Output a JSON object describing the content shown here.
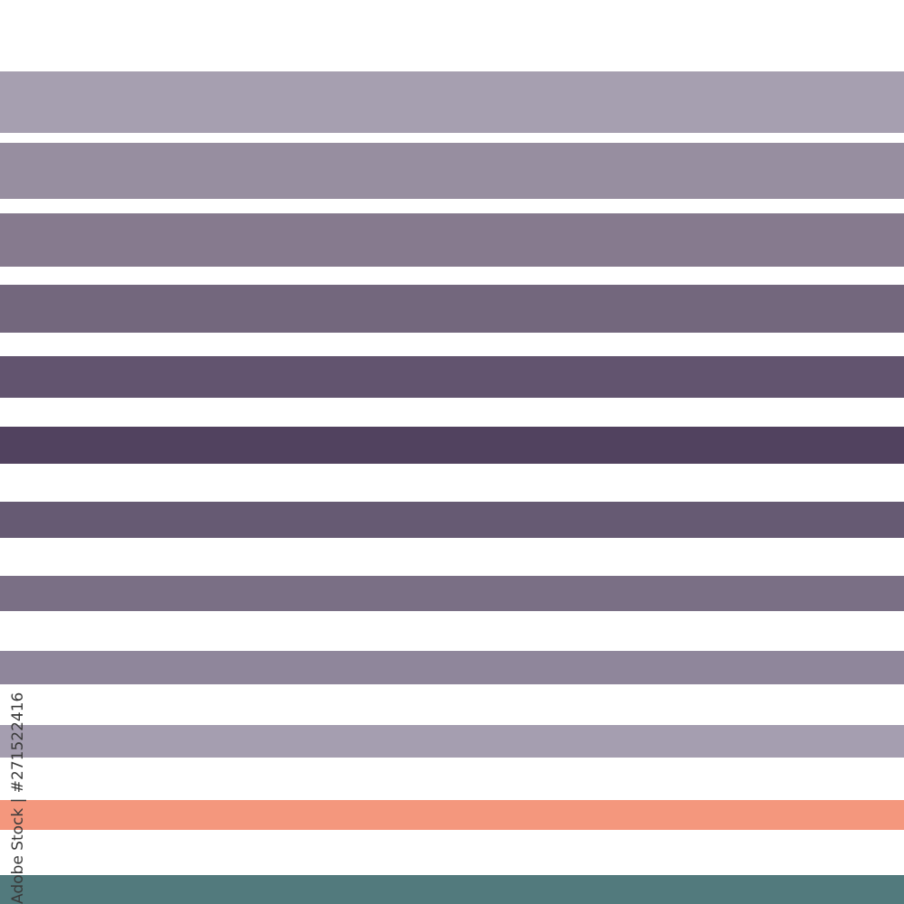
{
  "stripes": [
    {
      "color": "#a69fb0"
    },
    {
      "color": "#978ea0"
    },
    {
      "color": "#867a8e"
    },
    {
      "color": "#73677d"
    },
    {
      "color": "#62546f"
    },
    {
      "color": "#51425f"
    },
    {
      "color": "#665a73"
    },
    {
      "color": "#7a6f85"
    },
    {
      "color": "#8f869b"
    },
    {
      "color": "#a59eb0"
    },
    {
      "color": "#f4977d"
    },
    {
      "color": "#527a7d"
    }
  ],
  "background": "#ffffff",
  "watermark": "Adobe Stock",
  "credit": "Adobe Stock | #271522416"
}
